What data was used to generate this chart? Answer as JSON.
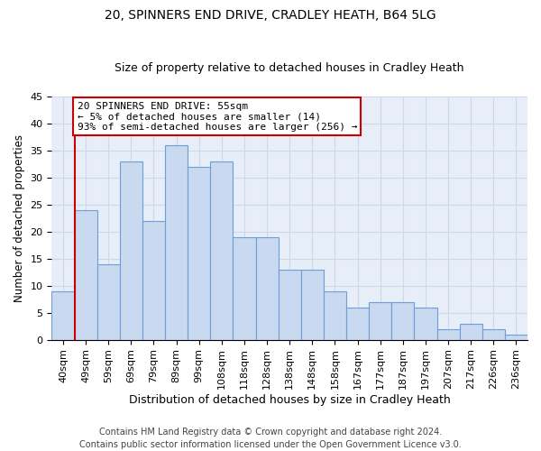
{
  "title1": "20, SPINNERS END DRIVE, CRADLEY HEATH, B64 5LG",
  "title2": "Size of property relative to detached houses in Cradley Heath",
  "xlabel": "Distribution of detached houses by size in Cradley Heath",
  "ylabel": "Number of detached properties",
  "categories": [
    "40sqm",
    "49sqm",
    "59sqm",
    "69sqm",
    "79sqm",
    "89sqm",
    "99sqm",
    "108sqm",
    "118sqm",
    "128sqm",
    "138sqm",
    "148sqm",
    "158sqm",
    "167sqm",
    "177sqm",
    "187sqm",
    "197sqm",
    "207sqm",
    "217sqm",
    "226sqm",
    "236sqm"
  ],
  "values": [
    9,
    24,
    14,
    33,
    22,
    36,
    32,
    33,
    19,
    19,
    13,
    13,
    9,
    6,
    7,
    7,
    6,
    2,
    3,
    2,
    1
  ],
  "bar_color": "#c9d9f0",
  "bar_edge_color": "#6a9fd8",
  "vline_color": "#cc0000",
  "annotation_text": "20 SPINNERS END DRIVE: 55sqm\n← 5% of detached houses are smaller (14)\n93% of semi-detached houses are larger (256) →",
  "annotation_box_color": "#ffffff",
  "annotation_box_edge": "#cc0000",
  "ylim": [
    0,
    45
  ],
  "yticks": [
    0,
    5,
    10,
    15,
    20,
    25,
    30,
    35,
    40,
    45
  ],
  "grid_color": "#d0d8e8",
  "bg_color": "#e8eef8",
  "footer": "Contains HM Land Registry data © Crown copyright and database right 2024.\nContains public sector information licensed under the Open Government Licence v3.0.",
  "title1_fontsize": 10,
  "title2_fontsize": 9,
  "xlabel_fontsize": 9,
  "ylabel_fontsize": 8.5,
  "footer_fontsize": 7,
  "tick_fontsize": 8,
  "annot_fontsize": 8
}
